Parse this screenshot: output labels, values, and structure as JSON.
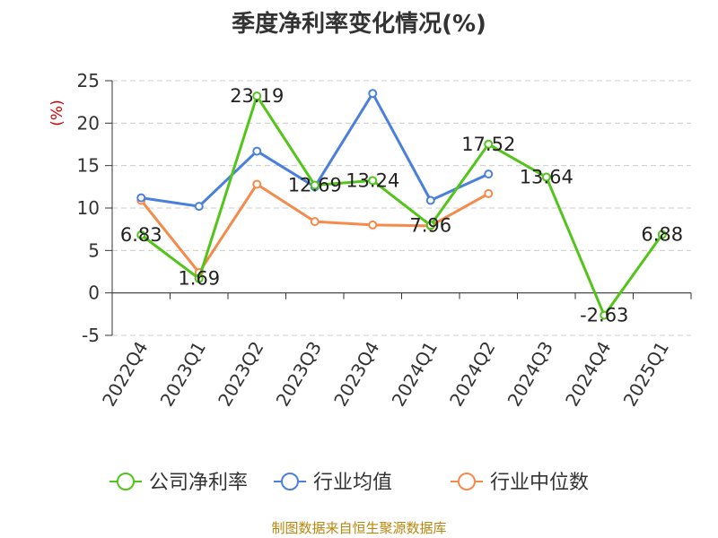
{
  "source_note": "制图数据来自恒生聚源数据库",
  "chart_data": {
    "type": "line",
    "title": "季度净利率变化情况(%)",
    "ylabel": "(%)",
    "xlabel": "",
    "categories": [
      "2022Q4",
      "2023Q1",
      "2023Q2",
      "2023Q3",
      "2023Q4",
      "2024Q1",
      "2024Q2",
      "2024Q3",
      "2024Q4",
      "2025Q1"
    ],
    "ylim": [
      -5,
      25
    ],
    "yticks": [
      -5,
      0,
      5,
      10,
      15,
      20,
      25
    ],
    "grid": true,
    "legend_position": "bottom",
    "series": [
      {
        "name": "公司净利率",
        "color": "#52c41a",
        "values": [
          6.83,
          1.69,
          23.19,
          12.69,
          13.24,
          7.96,
          17.52,
          13.64,
          -2.63,
          6.88
        ],
        "data_labels": [
          "6.83",
          "1.69",
          "23.19",
          "12.69",
          "13.24",
          "7.96",
          "17.52",
          "13.64",
          "-2.63",
          "6.88"
        ]
      },
      {
        "name": "行业均值",
        "color": "#4a7fdc",
        "values": [
          11.2,
          10.2,
          16.7,
          12.5,
          23.5,
          10.9,
          14.0,
          null,
          null,
          null
        ]
      },
      {
        "name": "行业中位数",
        "color": "#f58a4a",
        "values": [
          10.9,
          2.4,
          12.8,
          8.4,
          8.0,
          7.9,
          11.7,
          null,
          null,
          null
        ]
      }
    ]
  }
}
